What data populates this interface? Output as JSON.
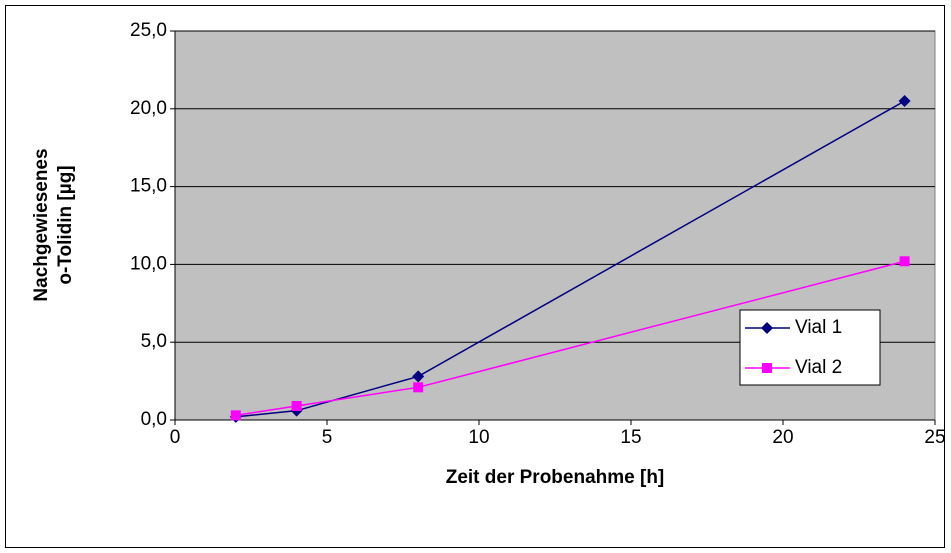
{
  "chart_data": {
    "type": "line",
    "xlabel": "Zeit der Probenahme [h]",
    "ylabel": [
      "Nachgewiesenes",
      "o-Tolidin [µg]"
    ],
    "x": [
      2,
      4,
      8,
      24
    ],
    "series": [
      {
        "name": "Vial 1",
        "color": "#000080",
        "marker": "diamond",
        "values": [
          0.2,
          0.6,
          2.8,
          20.5
        ]
      },
      {
        "name": "Vial 2",
        "color": "#ff00ff",
        "marker": "square",
        "values": [
          0.3,
          0.9,
          2.1,
          10.2
        ]
      }
    ],
    "xlim": [
      0,
      25
    ],
    "xticks": [
      0,
      5,
      10,
      15,
      20,
      25
    ],
    "ylim": [
      0,
      25
    ],
    "yticks": [
      {
        "value": 0,
        "label": "0,0"
      },
      {
        "value": 5,
        "label": "5,0"
      },
      {
        "value": 10,
        "label": "10,0"
      },
      {
        "value": 15,
        "label": "15,0"
      },
      {
        "value": 20,
        "label": "20,0"
      },
      {
        "value": 25,
        "label": "25,0"
      }
    ],
    "grid": true,
    "legend": "right",
    "plot_background": "#c0c0c0"
  }
}
